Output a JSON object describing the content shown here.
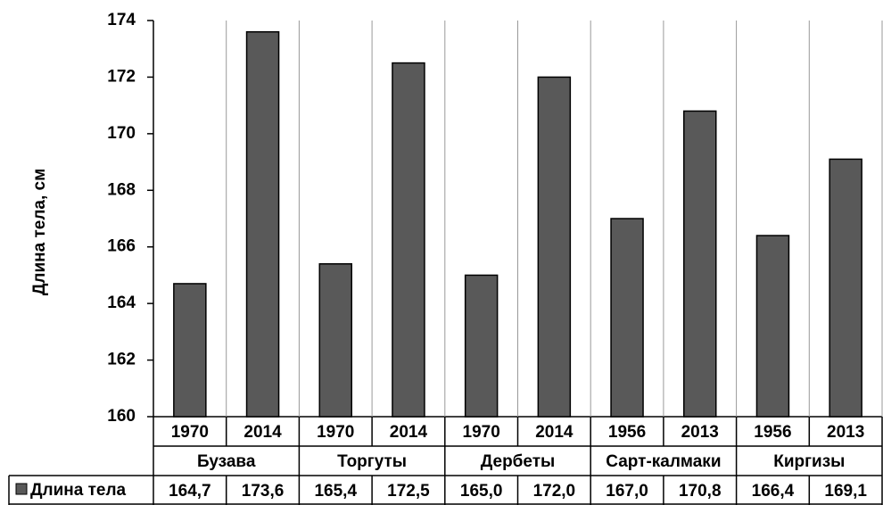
{
  "chart_data": {
    "type": "bar",
    "y_label": "Длина тела, см",
    "categories": [
      "1970",
      "2014",
      "1970",
      "2014",
      "1970",
      "2014",
      "1956",
      "2013",
      "1956",
      "2013"
    ],
    "groups": [
      "Бузава",
      "Торгуты",
      "Дербеты",
      "Сарт-калмаки",
      "Киргизы"
    ],
    "series": [
      {
        "name": "Длина тела",
        "color": "#595959",
        "values": [
          164.7,
          173.6,
          165.4,
          172.5,
          165.0,
          172.0,
          167.0,
          170.8,
          166.4,
          169.1
        ],
        "value_labels": [
          "164,7",
          "173,6",
          "165,4",
          "172,5",
          "165,0",
          "172,0",
          "167,0",
          "170,8",
          "166,4",
          "169,1"
        ]
      }
    ],
    "ylim": [
      160,
      174
    ],
    "yticks": [
      160,
      162,
      164,
      166,
      168,
      170,
      172,
      174
    ]
  }
}
